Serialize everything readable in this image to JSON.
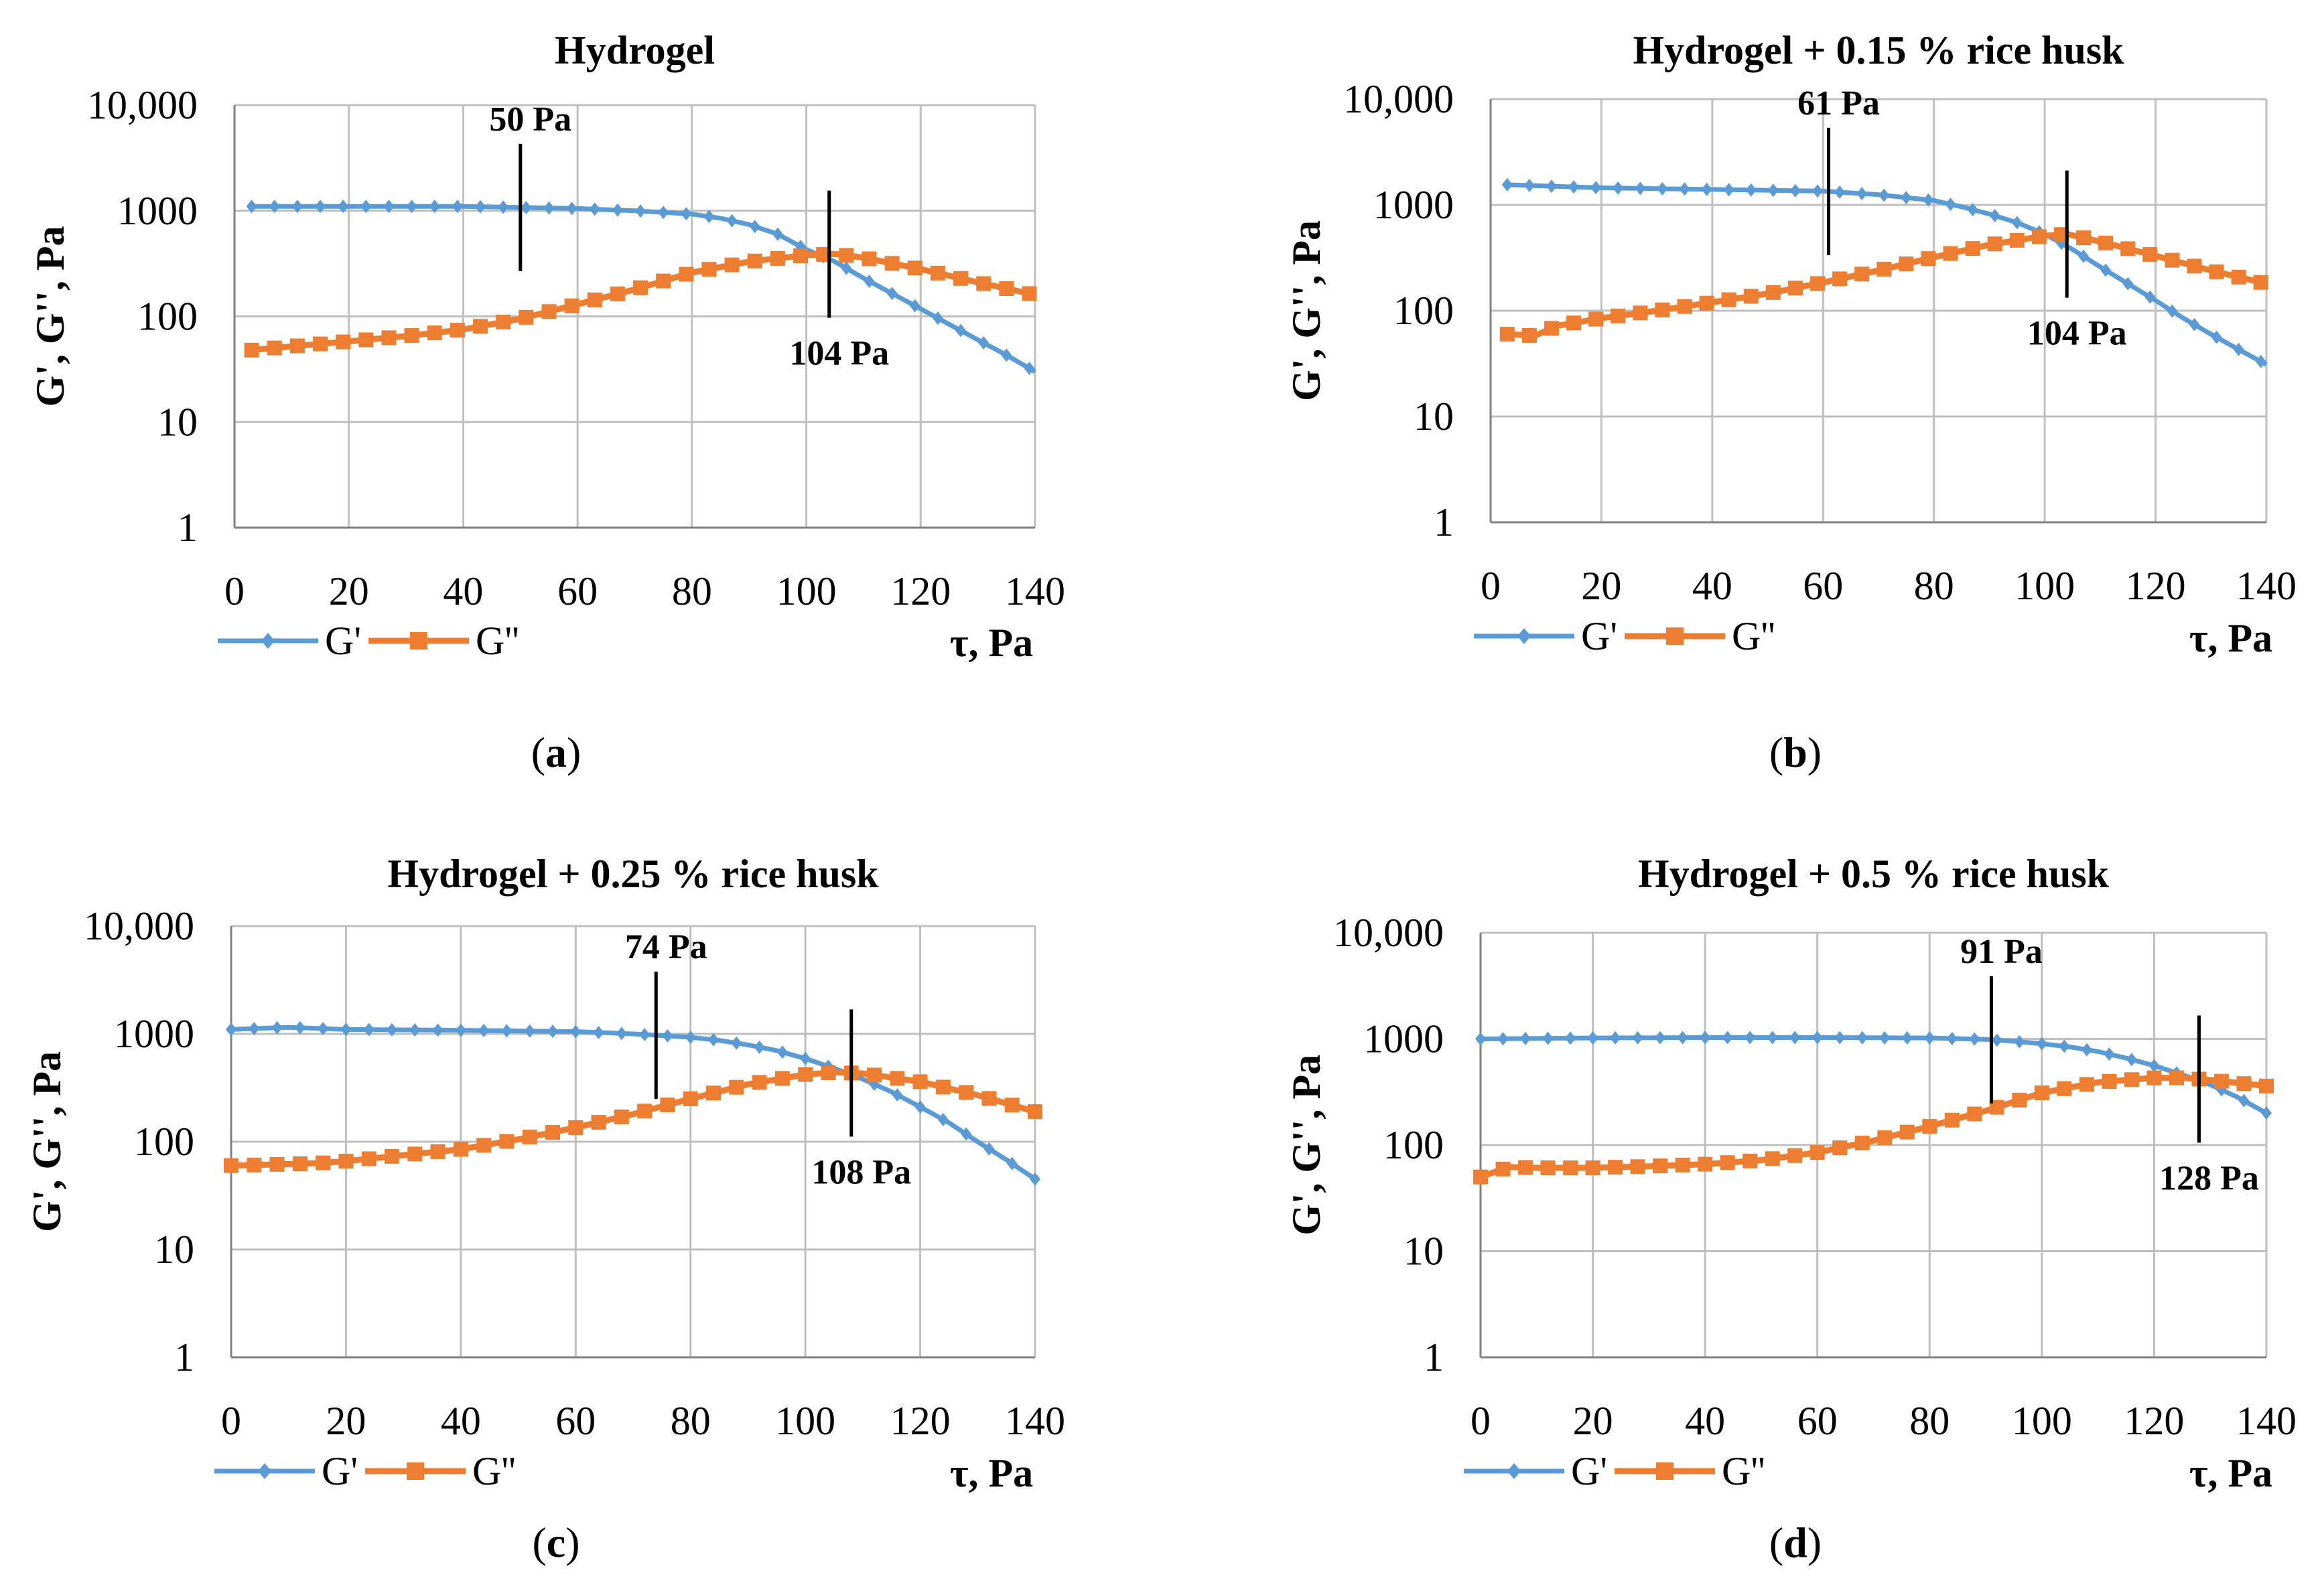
{
  "colors": {
    "g_prime": "#5B9BD5",
    "g_double": "#ED7D31",
    "grid": "#BFBFBF",
    "axis": "#808080"
  },
  "chart_data": [
    {
      "type": "line",
      "title": "Hydrogel",
      "xlabel": "τ, Pa",
      "ylabel": "G', G'', Pa",
      "xlim": [
        0,
        140
      ],
      "ylim": [
        1,
        10000
      ],
      "yscale": "log",
      "grid": true,
      "legend_position": "bottom-left",
      "xticks": [
        "0",
        "20",
        "40",
        "60",
        "80",
        "100",
        "120",
        "140"
      ],
      "yticks": [
        "1",
        "10",
        "100",
        "1000",
        "10,000"
      ],
      "caption_letter": "a",
      "series": [
        {
          "name": "G'",
          "marker": "diamond",
          "x": [
            3,
            20,
            40,
            60,
            70,
            80,
            85,
            90,
            95,
            100,
            105,
            110,
            115,
            120,
            125,
            130,
            135,
            140
          ],
          "y": [
            1100,
            1100,
            1100,
            1050,
            1000,
            930,
            850,
            740,
            600,
            430,
            330,
            230,
            165,
            118,
            84,
            60,
            43,
            30
          ]
        },
        {
          "name": "G''",
          "marker": "square",
          "x": [
            3,
            10,
            20,
            30,
            40,
            50,
            60,
            70,
            80,
            90,
            100,
            105,
            110,
            120,
            130,
            140
          ],
          "y": [
            48,
            52,
            58,
            65,
            75,
            95,
            130,
            180,
            260,
            330,
            380,
            390,
            360,
            280,
            210,
            160
          ]
        }
      ],
      "annotations": [
        {
          "x": 50,
          "text": "50 Pa",
          "label_side": "above"
        },
        {
          "x": 104,
          "text": "104 Pa",
          "label_side": "below"
        }
      ]
    },
    {
      "type": "line",
      "title": "Hydrogel + 0.15 % rice husk",
      "xlabel": "τ, Pa",
      "ylabel": "G', G'', Pa",
      "xlim": [
        0,
        140
      ],
      "ylim": [
        1,
        10000
      ],
      "yscale": "log",
      "grid": true,
      "legend_position": "bottom-left",
      "xticks": [
        "0",
        "20",
        "40",
        "60",
        "80",
        "100",
        "120",
        "140"
      ],
      "yticks": [
        "1",
        "10",
        "100",
        "1000",
        "10,000"
      ],
      "caption_letter": "b",
      "series": [
        {
          "name": "G'",
          "marker": "diamond",
          "x": [
            3,
            20,
            40,
            60,
            70,
            80,
            85,
            90,
            95,
            100,
            105,
            110,
            115,
            120,
            125,
            130,
            135,
            140
          ],
          "y": [
            1550,
            1450,
            1400,
            1350,
            1250,
            1100,
            960,
            820,
            680,
            530,
            380,
            260,
            180,
            125,
            85,
            60,
            43,
            31
          ]
        },
        {
          "name": "G''",
          "marker": "square",
          "x": [
            3,
            8,
            12,
            20,
            30,
            40,
            50,
            60,
            70,
            80,
            90,
            100,
            104,
            110,
            120,
            130,
            140
          ],
          "y": [
            60,
            58,
            72,
            85,
            100,
            120,
            145,
            185,
            240,
            320,
            420,
            510,
            530,
            450,
            330,
            240,
            180
          ]
        }
      ],
      "annotations": [
        {
          "x": 61,
          "text": "61 Pa",
          "label_side": "above"
        },
        {
          "x": 104,
          "text": "104 Pa",
          "label_side": "below"
        }
      ]
    },
    {
      "type": "line",
      "title": "Hydrogel + 0.25 % rice husk",
      "xlabel": "τ, Pa",
      "ylabel": "G', G'', Pa",
      "xlim": [
        0,
        140
      ],
      "ylim": [
        1,
        10000
      ],
      "yscale": "log",
      "grid": true,
      "legend_position": "bottom-left",
      "xticks": [
        "0",
        "20",
        "40",
        "60",
        "80",
        "100",
        "120",
        "140"
      ],
      "yticks": [
        "1",
        "10",
        "100",
        "1000",
        "10,000"
      ],
      "caption_letter": "c",
      "series": [
        {
          "name": "G'",
          "marker": "diamond",
          "x": [
            0,
            10,
            20,
            40,
            60,
            70,
            80,
            85,
            90,
            95,
            100,
            105,
            110,
            115,
            120,
            125,
            130,
            135,
            140
          ],
          "y": [
            1100,
            1150,
            1100,
            1080,
            1050,
            1000,
            930,
            870,
            790,
            700,
            590,
            480,
            380,
            290,
            210,
            150,
            100,
            68,
            45
          ]
        },
        {
          "name": "G''",
          "marker": "square",
          "x": [
            0,
            10,
            15,
            20,
            30,
            40,
            50,
            60,
            70,
            80,
            90,
            100,
            105,
            110,
            120,
            130,
            140
          ],
          "y": [
            60,
            62,
            63,
            66,
            75,
            85,
            105,
            135,
            180,
            250,
            340,
            420,
            440,
            430,
            360,
            270,
            190
          ]
        }
      ],
      "annotations": [
        {
          "x": 74,
          "text": "74 Pa",
          "label_side": "above"
        },
        {
          "x": 108,
          "text": "108 Pa",
          "label_side": "below"
        }
      ]
    },
    {
      "type": "line",
      "title": "Hydrogel + 0.5 % rice husk",
      "xlabel": "τ, Pa",
      "ylabel": "G', G'', Pa",
      "xlim": [
        0,
        140
      ],
      "ylim": [
        1,
        10000
      ],
      "yscale": "log",
      "grid": true,
      "legend_position": "bottom-left",
      "xticks": [
        "0",
        "20",
        "40",
        "60",
        "80",
        "100",
        "120",
        "140"
      ],
      "yticks": [
        "1",
        "10",
        "100",
        "1000",
        "10,000"
      ],
      "caption_letter": "d",
      "series": [
        {
          "name": "G'",
          "marker": "diamond",
          "x": [
            0,
            20,
            40,
            60,
            80,
            90,
            95,
            100,
            105,
            110,
            115,
            120,
            125,
            130,
            135,
            140
          ],
          "y": [
            1000,
            1020,
            1030,
            1030,
            1020,
            990,
            950,
            900,
            840,
            760,
            660,
            560,
            460,
            370,
            280,
            200
          ]
        },
        {
          "name": "G''",
          "marker": "square",
          "x": [
            0,
            5,
            10,
            20,
            30,
            40,
            50,
            60,
            70,
            80,
            90,
            100,
            110,
            120,
            125,
            130,
            140
          ],
          "y": [
            50,
            62,
            61,
            61,
            63,
            66,
            72,
            85,
            110,
            150,
            210,
            310,
            390,
            430,
            430,
            410,
            360
          ]
        }
      ],
      "annotations": [
        {
          "x": 91,
          "text": "91 Pa",
          "label_side": "above"
        },
        {
          "x": 128,
          "text": "128 Pa",
          "label_side": "below"
        }
      ]
    }
  ]
}
